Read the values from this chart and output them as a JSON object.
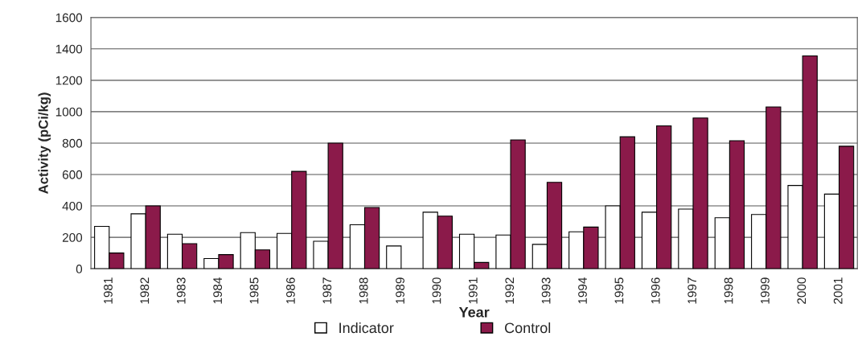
{
  "chart_data": {
    "type": "bar",
    "xlabel": "Year",
    "ylabel": "Activity (pCi/kg)",
    "categories": [
      "1981",
      "1982",
      "1983",
      "1984",
      "1985",
      "1986",
      "1987",
      "1988",
      "1989",
      "1990",
      "1991",
      "1992",
      "1993",
      "1994",
      "1995",
      "1996",
      "1997",
      "1998",
      "1999",
      "2000",
      "2001"
    ],
    "series": [
      {
        "name": "Indicator",
        "color": "#ffffff",
        "values": [
          270,
          350,
          220,
          65,
          230,
          225,
          175,
          280,
          145,
          360,
          220,
          215,
          155,
          235,
          400,
          360,
          380,
          325,
          345,
          530,
          475
        ]
      },
      {
        "name": "Control",
        "color": "#8b1a4a",
        "values": [
          100,
          400,
          160,
          90,
          120,
          620,
          800,
          390,
          null,
          335,
          40,
          820,
          550,
          265,
          840,
          910,
          960,
          815,
          1030,
          1355,
          780
        ]
      }
    ],
    "ylim": [
      0,
      1600
    ],
    "yticks": [
      0,
      200,
      400,
      600,
      800,
      1000,
      1200,
      1400,
      1600
    ],
    "grid": "y",
    "legend": "bottom"
  }
}
